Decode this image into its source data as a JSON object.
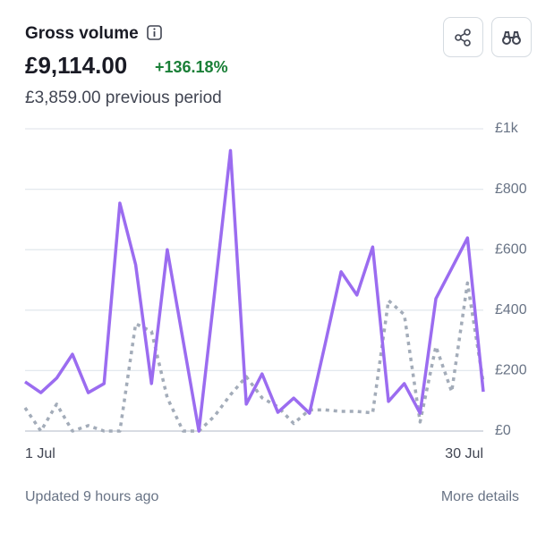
{
  "header": {
    "title": "Gross volume",
    "value": "£9,114.00",
    "change": "+136.18%",
    "subtitle": "£3,859.00 previous period"
  },
  "chart_data": {
    "type": "line",
    "categories": [
      "1 Jul",
      null,
      null,
      null,
      null,
      null,
      null,
      null,
      null,
      null,
      null,
      null,
      null,
      null,
      null,
      null,
      null,
      null,
      null,
      null,
      null,
      null,
      null,
      null,
      null,
      null,
      null,
      null,
      null,
      "30 Jul"
    ],
    "series": [
      {
        "color": "#9b6cf0",
        "line_style": "solid",
        "values": [
          163,
          127,
          175,
          254,
          127,
          157,
          754,
          550,
          157,
          600,
          300,
          0,
          460,
          928,
          89,
          189,
          62,
          109,
          59,
          290,
          527,
          450,
          609,
          98,
          157,
          59,
          438,
          538,
          639,
          130
        ]
      },
      {
        "color": "#a3acb9",
        "line_style": "dotted",
        "values": [
          77,
          0,
          89,
          0,
          18,
          0,
          0,
          355,
          330,
          110,
          0,
          0,
          50,
          120,
          180,
          110,
          80,
          25,
          70,
          70,
          65,
          65,
          60,
          432,
          385,
          30,
          280,
          130,
          490,
          160
        ]
      }
    ],
    "ylim": [
      0,
      1000
    ],
    "yticks": [
      {
        "value": 0,
        "label": "£0"
      },
      {
        "value": 200,
        "label": "£200"
      },
      {
        "value": 400,
        "label": "£400"
      },
      {
        "value": 600,
        "label": "£600"
      },
      {
        "value": 800,
        "label": "£800"
      },
      {
        "value": 1000,
        "label": "£1k"
      }
    ],
    "grid": true
  },
  "footer": {
    "left": "Updated 9 hours ago",
    "right": "More details"
  }
}
